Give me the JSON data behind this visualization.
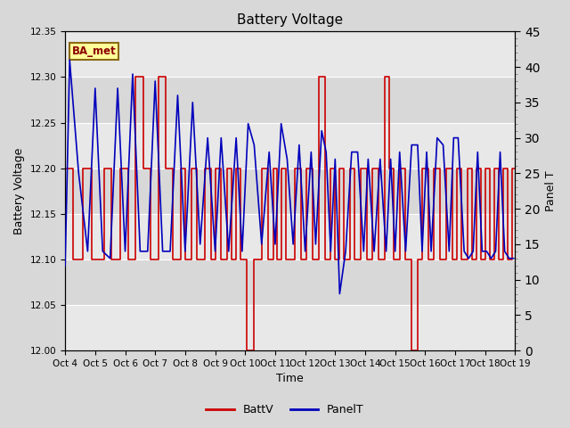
{
  "title": "Battery Voltage",
  "ylabel_left": "Battery Voltage",
  "ylabel_right": "Panel T",
  "xlabel": "Time",
  "ylim_left": [
    12.0,
    12.35
  ],
  "ylim_right": [
    0,
    45
  ],
  "yticks_left": [
    12.0,
    12.05,
    12.1,
    12.15,
    12.2,
    12.25,
    12.3,
    12.35
  ],
  "yticks_right": [
    0,
    5,
    10,
    15,
    20,
    25,
    30,
    35,
    40,
    45
  ],
  "xtick_labels": [
    "Oct 4",
    "Oct 5",
    "Oct 6",
    "Oct 7",
    "Oct 8",
    "Oct 9",
    "Oct 10",
    "Oct 11",
    "Oct 12",
    "Oct 13",
    "Oct 14",
    "Oct 15",
    "Oct 16",
    "Oct 17",
    "Oct 18",
    "Oct 19"
  ],
  "annotation_text": "BA_met",
  "fig_bg_color": "#d8d8d8",
  "plot_bg_color": "#e8e8e8",
  "band_colors": [
    "#e0e0e0",
    "#d0d0d0"
  ],
  "red_color": "#cc0000",
  "blue_color": "#0000bb",
  "legend_labels": [
    "BattV",
    "PanelT"
  ],
  "batt_v_x": [
    0.0,
    0.25,
    0.25,
    0.6,
    0.6,
    0.9,
    0.9,
    1.3,
    1.3,
    1.55,
    1.55,
    1.85,
    1.85,
    2.1,
    2.1,
    2.35,
    2.35,
    2.6,
    2.6,
    2.85,
    2.85,
    3.1,
    3.1,
    3.35,
    3.35,
    3.6,
    3.6,
    3.85,
    3.85,
    4.0,
    4.0,
    4.2,
    4.2,
    4.4,
    4.4,
    4.65,
    4.65,
    4.85,
    4.85,
    5.0,
    5.0,
    5.2,
    5.2,
    5.4,
    5.4,
    5.55,
    5.55,
    5.7,
    5.7,
    5.85,
    5.85,
    6.05,
    6.05,
    6.3,
    6.3,
    6.55,
    6.55,
    6.75,
    6.75,
    6.95,
    6.95,
    7.05,
    7.05,
    7.2,
    7.2,
    7.35,
    7.35,
    7.65,
    7.65,
    7.85,
    7.85,
    8.05,
    8.05,
    8.25,
    8.25,
    8.45,
    8.45,
    8.65,
    8.65,
    8.85,
    8.85,
    9.0,
    9.0,
    9.15,
    9.15,
    9.3,
    9.3,
    9.5,
    9.5,
    9.65,
    9.65,
    9.85,
    9.85,
    10.05,
    10.05,
    10.25,
    10.25,
    10.45,
    10.45,
    10.65,
    10.65,
    10.8,
    10.8,
    10.95,
    10.95,
    11.15,
    11.15,
    11.35,
    11.35,
    11.55,
    11.55,
    11.75,
    11.75,
    11.9,
    11.9,
    12.1,
    12.1,
    12.3,
    12.3,
    12.5,
    12.5,
    12.7,
    12.7,
    12.9,
    12.9,
    13.05,
    13.05,
    13.2,
    13.2,
    13.4,
    13.4,
    13.55,
    13.55,
    13.7,
    13.7,
    13.85,
    13.85,
    14.0,
    14.0,
    14.15,
    14.15,
    14.3,
    14.3,
    14.45,
    14.45,
    14.6,
    14.6,
    14.75,
    14.75,
    14.9,
    14.9,
    15.0
  ],
  "batt_v_y": [
    12.2,
    12.2,
    12.1,
    12.1,
    12.2,
    12.2,
    12.1,
    12.1,
    12.2,
    12.2,
    12.1,
    12.1,
    12.2,
    12.2,
    12.1,
    12.1,
    12.3,
    12.3,
    12.2,
    12.2,
    12.1,
    12.1,
    12.3,
    12.3,
    12.2,
    12.2,
    12.1,
    12.1,
    12.2,
    12.2,
    12.1,
    12.1,
    12.2,
    12.2,
    12.1,
    12.1,
    12.2,
    12.2,
    12.1,
    12.1,
    12.2,
    12.2,
    12.1,
    12.1,
    12.2,
    12.2,
    12.1,
    12.1,
    12.2,
    12.2,
    12.1,
    12.1,
    12.0,
    12.0,
    12.1,
    12.1,
    12.2,
    12.2,
    12.1,
    12.1,
    12.2,
    12.2,
    12.1,
    12.1,
    12.2,
    12.2,
    12.1,
    12.1,
    12.2,
    12.2,
    12.1,
    12.1,
    12.2,
    12.2,
    12.1,
    12.1,
    12.3,
    12.3,
    12.1,
    12.1,
    12.2,
    12.2,
    12.1,
    12.1,
    12.2,
    12.2,
    12.1,
    12.1,
    12.2,
    12.2,
    12.1,
    12.1,
    12.2,
    12.2,
    12.1,
    12.1,
    12.2,
    12.2,
    12.1,
    12.1,
    12.3,
    12.3,
    12.2,
    12.2,
    12.1,
    12.1,
    12.2,
    12.2,
    12.1,
    12.1,
    12.0,
    12.0,
    12.1,
    12.1,
    12.2,
    12.2,
    12.1,
    12.1,
    12.2,
    12.2,
    12.1,
    12.1,
    12.2,
    12.2,
    12.1,
    12.1,
    12.2,
    12.2,
    12.1,
    12.1,
    12.2,
    12.2,
    12.1,
    12.1,
    12.2,
    12.2,
    12.1,
    12.1,
    12.2,
    12.2,
    12.1,
    12.1,
    12.2,
    12.2,
    12.1,
    12.1,
    12.2,
    12.2,
    12.1,
    12.1,
    12.2,
    12.2
  ],
  "panel_t_x": [
    0.0,
    0.15,
    0.45,
    0.75,
    1.0,
    1.25,
    1.5,
    1.75,
    2.0,
    2.25,
    2.5,
    2.75,
    3.0,
    3.25,
    3.5,
    3.75,
    4.0,
    4.25,
    4.5,
    4.75,
    5.0,
    5.2,
    5.45,
    5.7,
    5.9,
    6.1,
    6.3,
    6.55,
    6.8,
    7.0,
    7.2,
    7.4,
    7.6,
    7.8,
    8.0,
    8.2,
    8.35,
    8.55,
    8.7,
    8.85,
    9.0,
    9.15,
    9.35,
    9.55,
    9.75,
    9.95,
    10.1,
    10.3,
    10.5,
    10.7,
    10.85,
    11.0,
    11.15,
    11.35,
    11.55,
    11.75,
    11.9,
    12.05,
    12.2,
    12.4,
    12.6,
    12.8,
    12.95,
    13.1,
    13.3,
    13.45,
    13.6,
    13.75,
    13.9,
    14.05,
    14.2,
    14.35,
    14.5,
    14.65,
    14.8,
    14.95
  ],
  "panel_t_y": [
    12,
    41,
    25,
    14,
    37,
    14,
    13,
    37,
    14,
    39,
    14,
    14,
    38,
    14,
    14,
    36,
    14,
    35,
    15,
    30,
    14,
    30,
    14,
    30,
    14,
    32,
    29,
    15,
    28,
    15,
    32,
    27,
    15,
    29,
    14,
    28,
    15,
    31,
    28,
    14,
    27,
    8,
    14,
    28,
    28,
    14,
    27,
    14,
    27,
    14,
    27,
    14,
    28,
    14,
    29,
    29,
    14,
    28,
    14,
    30,
    29,
    14,
    30,
    30,
    14,
    13,
    14,
    28,
    14,
    14,
    13,
    14,
    28,
    14,
    13,
    13
  ]
}
